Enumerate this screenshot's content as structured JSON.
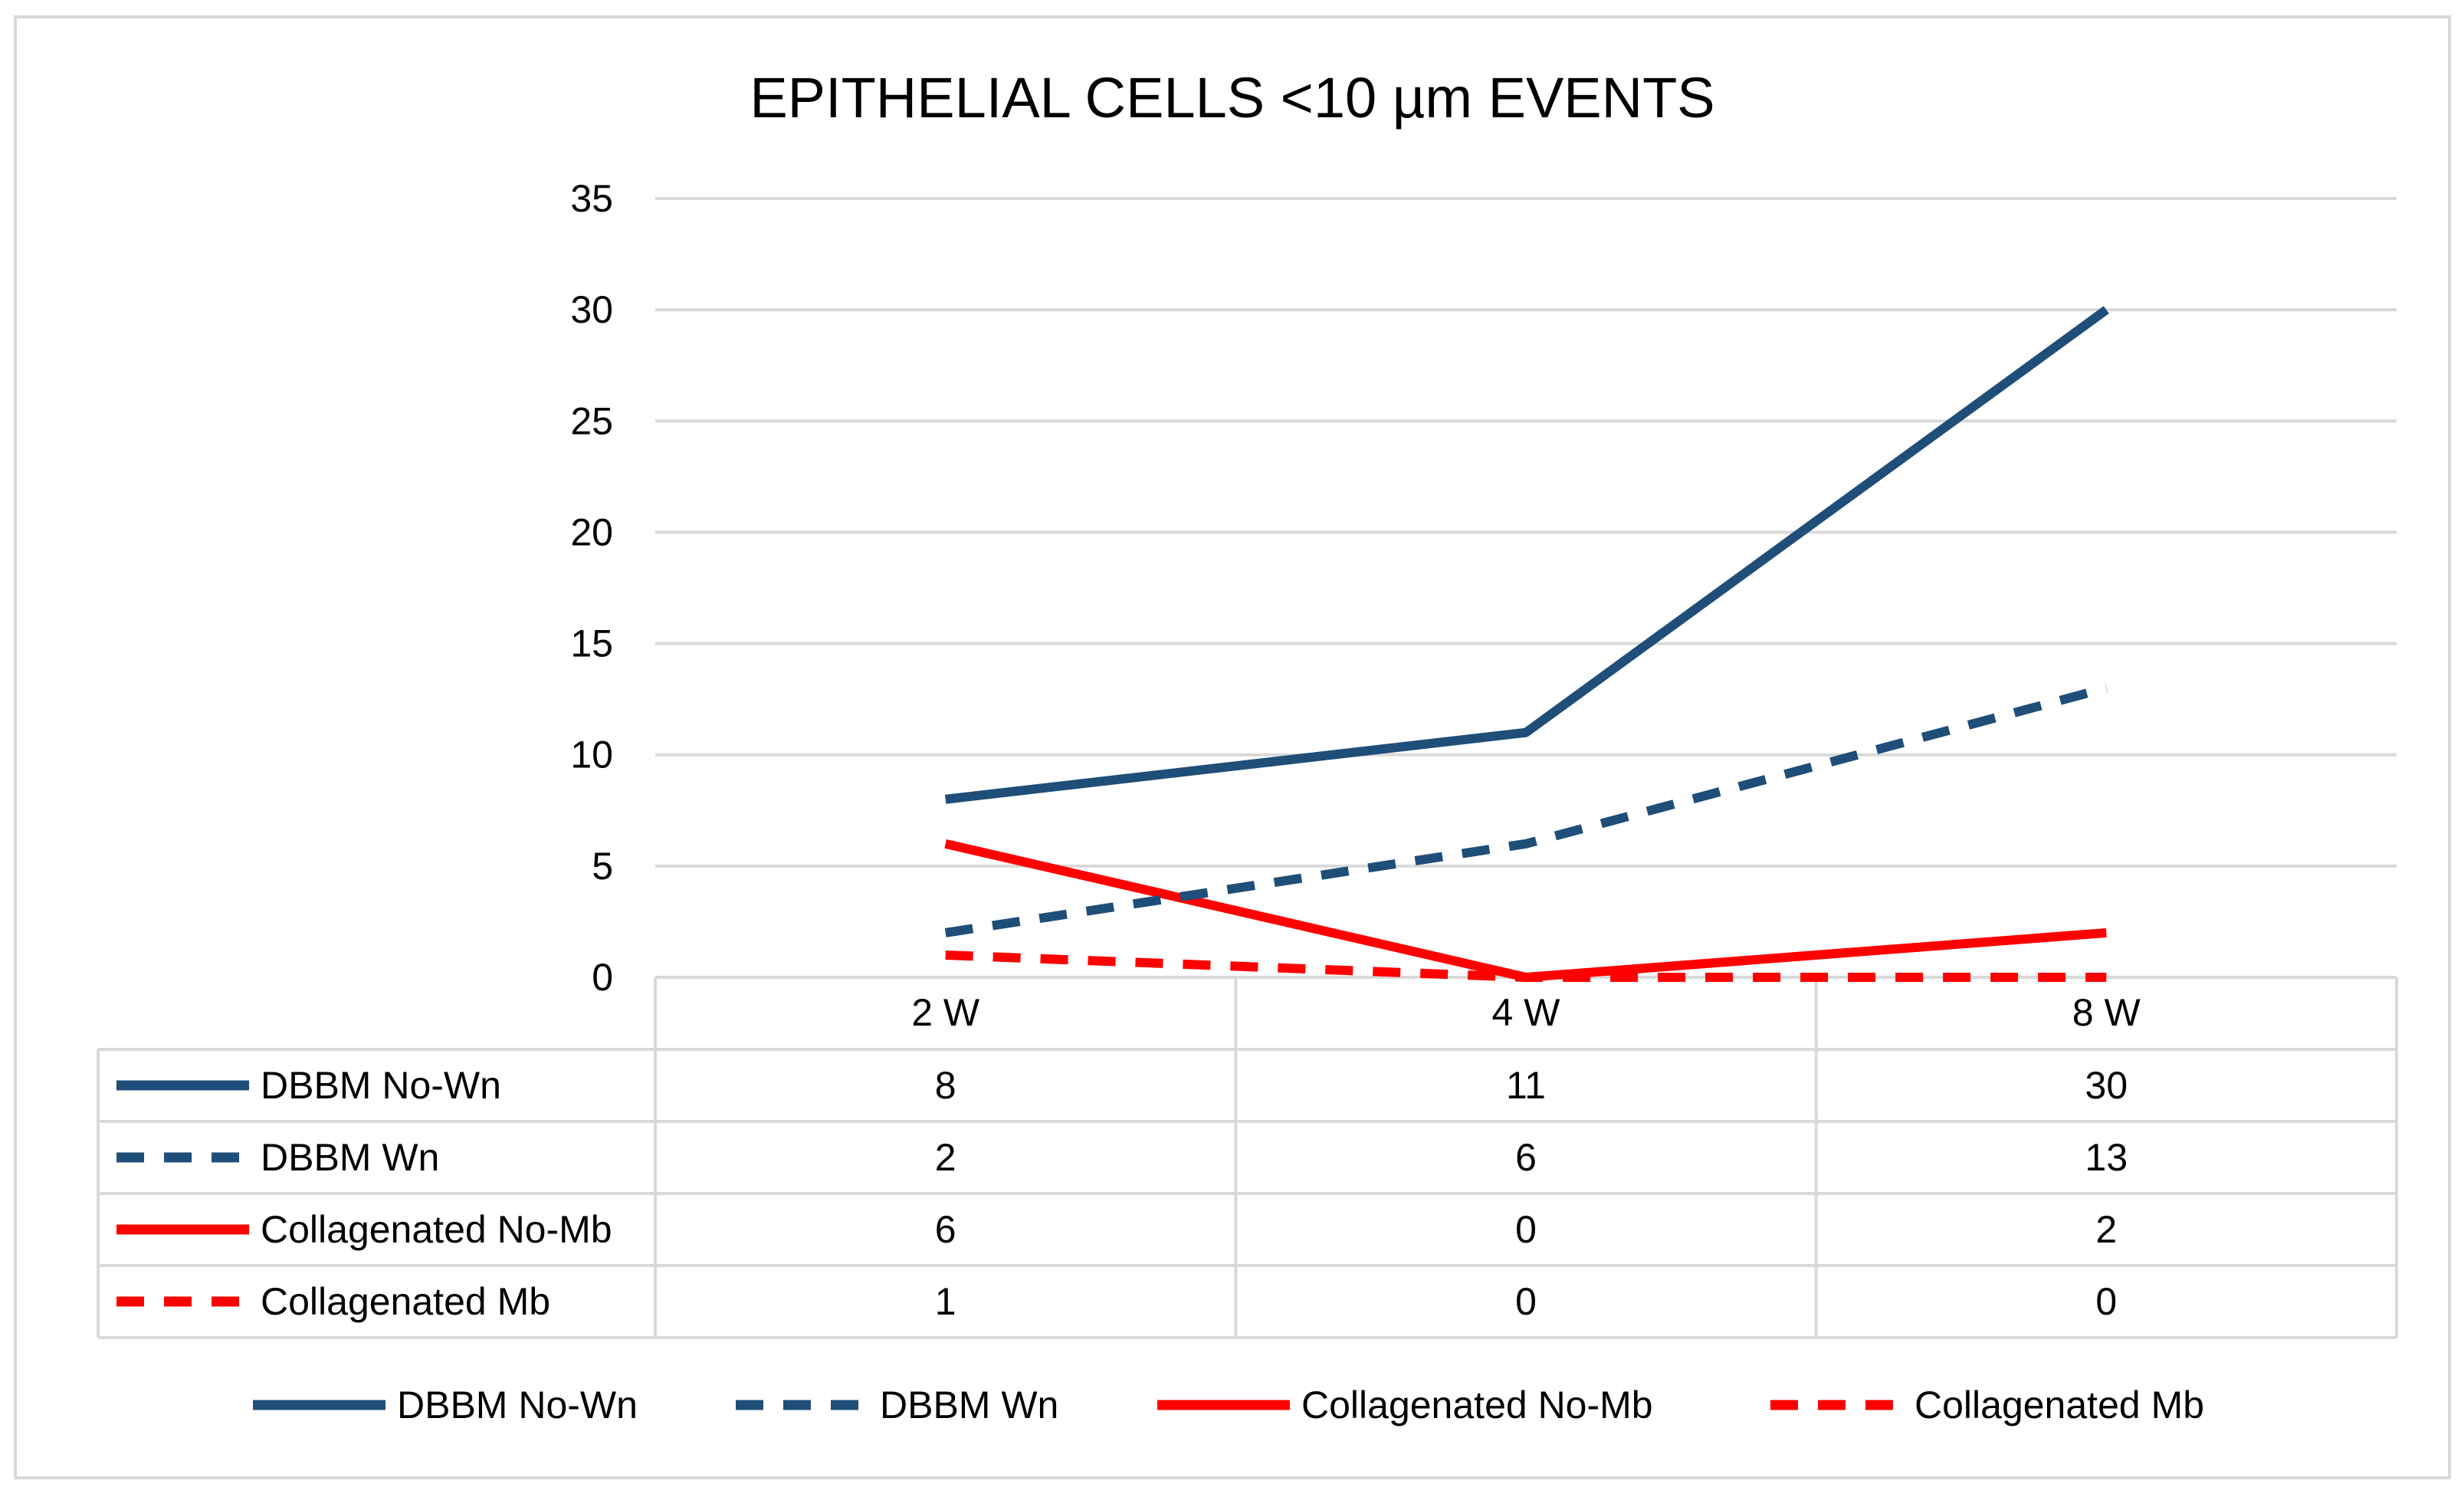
{
  "chart_data": {
    "type": "line",
    "title": "EPITHELIAL CELLS <10 µm EVENTS",
    "xlabel": "",
    "ylabel": "",
    "categories": [
      "2 W",
      "4 W",
      "8 W"
    ],
    "ylim": [
      0,
      35
    ],
    "yticks": [
      0,
      5,
      10,
      15,
      20,
      25,
      30,
      35
    ],
    "grid": true,
    "legend_position": "bottom",
    "data_table": true,
    "series": [
      {
        "name": "DBBM No-Wn",
        "values": [
          8,
          11,
          30
        ],
        "color": "#1f4e79",
        "dash": "solid"
      },
      {
        "name": "DBBM Wn",
        "values": [
          2,
          6,
          13
        ],
        "color": "#1f4e79",
        "dash": "dashed"
      },
      {
        "name": "Collagenated No-Mb",
        "values": [
          6,
          0,
          2
        ],
        "color": "#ff0000",
        "dash": "solid"
      },
      {
        "name": "Collagenated Mb",
        "values": [
          1,
          0,
          0
        ],
        "color": "#ff0000",
        "dash": "dashed"
      }
    ]
  }
}
